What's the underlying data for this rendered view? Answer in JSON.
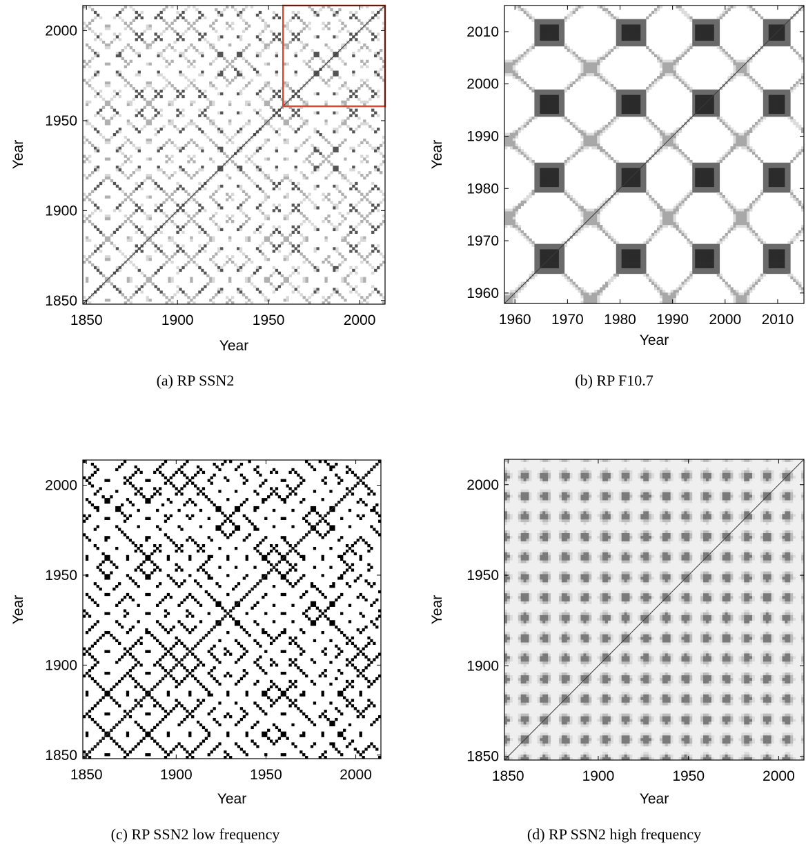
{
  "chart_data": [
    {
      "type": "heatmap",
      "caption": "(a) RP SSN2",
      "xlabel": "Year",
      "ylabel": "Year",
      "xlim": [
        1848,
        2014
      ],
      "ylim": [
        1848,
        2014
      ],
      "xticks": [
        1850,
        1900,
        1950,
        2000
      ],
      "yticks": [
        1850,
        1900,
        1950,
        2000
      ],
      "style": "recurrence-light",
      "cycle_min_years": [
        1856.0,
        1867.2,
        1878.9,
        1889.6,
        1901.7,
        1913.6,
        1923.6,
        1933.8,
        1944.2,
        1954.3,
        1964.9,
        1976.5,
        1986.8,
        1996.4,
        2008.9
      ],
      "highlight_box": {
        "x": [
          1958,
          2014
        ],
        "y": [
          1958,
          2014
        ],
        "color": "#d94a2e"
      }
    },
    {
      "type": "heatmap",
      "caption": "(b) RP F10.7",
      "xlabel": "Year",
      "ylabel": "Year",
      "xlim": [
        1958,
        2015
      ],
      "ylim": [
        1958,
        2015
      ],
      "xticks": [
        1960,
        1970,
        1980,
        1990,
        2000,
        2010
      ],
      "yticks": [
        1960,
        1970,
        1980,
        1990,
        2000,
        2010
      ],
      "style": "recurrence-blocks",
      "cycle_min_years": [
        1966.5,
        1982.3,
        1996.2,
        2009.8
      ]
    },
    {
      "type": "heatmap",
      "caption": "(c) RP SSN2 low frequency",
      "xlabel": "Year",
      "ylabel": "Year",
      "xlim": [
        1848,
        2014
      ],
      "ylim": [
        1848,
        2014
      ],
      "xticks": [
        1850,
        1900,
        1950,
        2000
      ],
      "yticks": [
        1850,
        1900,
        1950,
        2000
      ],
      "style": "recurrence-contour",
      "cycle_min_years": [
        1856.0,
        1867.2,
        1878.9,
        1889.6,
        1901.7,
        1913.6,
        1923.6,
        1933.8,
        1944.2,
        1954.3,
        1964.9,
        1976.5,
        1986.8,
        1996.4,
        2008.9
      ]
    },
    {
      "type": "heatmap",
      "caption": "(d) RP SSN2 high frequency",
      "xlabel": "Year",
      "ylabel": "Year",
      "xlim": [
        1848,
        2014
      ],
      "ylim": [
        1848,
        2014
      ],
      "xticks": [
        1850,
        1900,
        1950,
        2000
      ],
      "yticks": [
        1850,
        1900,
        1950,
        2000
      ],
      "style": "recurrence-faint",
      "cycle_min_years": [
        1856.0,
        1867.2,
        1878.9,
        1889.6,
        1901.7,
        1913.6,
        1923.6,
        1933.8,
        1944.2,
        1954.3,
        1964.9,
        1976.5,
        1986.8,
        1996.4,
        2008.9
      ]
    }
  ]
}
